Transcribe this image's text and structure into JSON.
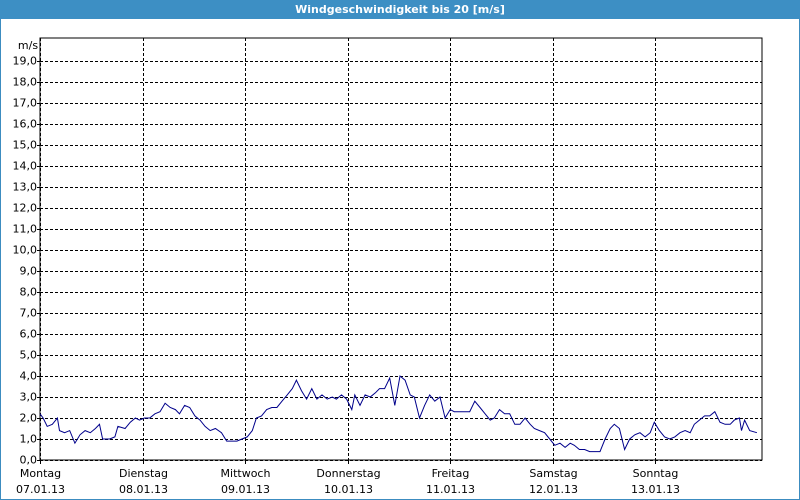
{
  "chart_data": {
    "type": "line",
    "title": "Windgeschwindigkeit bis 20 [m/s]",
    "y_label": "m/s",
    "xlim": [
      0,
      7.04
    ],
    "ylim": [
      0,
      20
    ],
    "xticks": [
      {
        "value": 0,
        "label": "Montag",
        "date": "07.01.13"
      },
      {
        "value": 1,
        "label": "Dienstag",
        "date": "08.01.13"
      },
      {
        "value": 2,
        "label": "Mittwoch",
        "date": "09.01.13"
      },
      {
        "value": 3,
        "label": "Donnerstag",
        "date": "10.01.13"
      },
      {
        "value": 4,
        "label": "Freitag",
        "date": "11.01.13"
      },
      {
        "value": 5,
        "label": "Samstag",
        "date": "12.01.13"
      },
      {
        "value": 6,
        "label": "Sonntag",
        "date": "13.01.13"
      }
    ],
    "yticks": [
      {
        "value": 0,
        "label": "0,0"
      },
      {
        "value": 1,
        "label": "1,0"
      },
      {
        "value": 2,
        "label": "2,0"
      },
      {
        "value": 3,
        "label": "3,0"
      },
      {
        "value": 4,
        "label": "4,0"
      },
      {
        "value": 5,
        "label": "5,0"
      },
      {
        "value": 6,
        "label": "6,0"
      },
      {
        "value": 7,
        "label": "7,0"
      },
      {
        "value": 8,
        "label": "8,0"
      },
      {
        "value": 9,
        "label": "9,0"
      },
      {
        "value": 10,
        "label": "10,0"
      },
      {
        "value": 11,
        "label": "11,0"
      },
      {
        "value": 12,
        "label": "12,0"
      },
      {
        "value": 13,
        "label": "13,0"
      },
      {
        "value": 14,
        "label": "14,0"
      },
      {
        "value": 15,
        "label": "15,0"
      },
      {
        "value": 16,
        "label": "16,0"
      },
      {
        "value": 17,
        "label": "17,0"
      },
      {
        "value": 18,
        "label": "18,0"
      },
      {
        "value": 19,
        "label": "19,0"
      }
    ],
    "grid": true,
    "series": [
      {
        "color": "#00008b",
        "x": [
          0,
          0.03,
          0.07,
          0.12,
          0.17,
          0.19,
          0.24,
          0.29,
          0.34,
          0.39,
          0.44,
          0.49,
          0.54,
          0.58,
          0.61,
          0.68,
          0.73,
          0.76,
          0.83,
          0.88,
          0.93,
          0.97,
          1.02,
          1.07,
          1.12,
          1.17,
          1.22,
          1.27,
          1.32,
          1.36,
          1.41,
          1.46,
          1.51,
          1.56,
          1.61,
          1.66,
          1.71,
          1.77,
          1.82,
          1.87,
          1.92,
          1.97,
          2.02,
          2.07,
          2.11,
          2.16,
          2.21,
          2.26,
          2.31,
          2.36,
          2.41,
          2.46,
          2.5,
          2.55,
          2.6,
          2.65,
          2.7,
          2.75,
          2.8,
          2.85,
          2.89,
          2.94,
          2.99,
          3.04,
          3.07,
          3.12,
          3.17,
          3.22,
          3.27,
          3.31,
          3.36,
          3.41,
          3.46,
          3.51,
          3.56,
          3.61,
          3.65,
          3.7,
          3.75,
          3.8,
          3.85,
          3.9,
          3.95,
          4.0,
          4.04,
          4.09,
          4.14,
          4.19,
          4.24,
          4.29,
          4.34,
          4.39,
          4.43,
          4.48,
          4.53,
          4.58,
          4.63,
          4.68,
          4.73,
          4.78,
          4.82,
          4.87,
          4.92,
          4.97,
          5.02,
          5.07,
          5.12,
          5.17,
          5.21,
          5.26,
          5.31,
          5.36,
          5.41,
          5.46,
          5.51,
          5.56,
          5.6,
          5.65,
          5.7,
          5.75,
          5.8,
          5.85,
          5.9,
          5.95,
          5.99,
          6.04,
          6.09,
          6.14,
          6.19,
          6.24,
          6.29,
          6.34,
          6.38,
          6.43,
          6.48,
          6.53,
          6.58,
          6.63,
          6.68,
          6.73,
          6.77,
          6.82,
          6.84,
          6.87,
          6.92,
          6.99
        ],
        "values": [
          2.2,
          2.0,
          1.6,
          1.7,
          2.0,
          1.4,
          1.3,
          1.4,
          0.8,
          1.2,
          1.4,
          1.3,
          1.5,
          1.7,
          1.0,
          1.0,
          1.1,
          1.6,
          1.5,
          1.8,
          2.0,
          1.9,
          2.0,
          2.0,
          2.2,
          2.3,
          2.7,
          2.5,
          2.4,
          2.2,
          2.6,
          2.5,
          2.1,
          1.9,
          1.6,
          1.4,
          1.5,
          1.3,
          0.9,
          0.9,
          0.9,
          1.0,
          1.1,
          1.4,
          2.0,
          2.1,
          2.4,
          2.5,
          2.5,
          2.8,
          3.1,
          3.4,
          3.8,
          3.3,
          2.9,
          3.4,
          2.9,
          3.1,
          2.9,
          3.0,
          2.9,
          3.1,
          2.9,
          2.4,
          3.1,
          2.6,
          3.1,
          3.0,
          3.2,
          3.4,
          3.4,
          3.9,
          2.6,
          4.0,
          3.8,
          3.1,
          3.0,
          2.0,
          2.6,
          3.1,
          2.8,
          3.0,
          2.0,
          2.4,
          2.3,
          2.3,
          2.3,
          2.3,
          2.8,
          2.5,
          2.2,
          1.9,
          2.0,
          2.4,
          2.2,
          2.2,
          1.7,
          1.7,
          2.0,
          1.7,
          1.5,
          1.4,
          1.3,
          1.0,
          0.7,
          0.8,
          0.6,
          0.8,
          0.7,
          0.5,
          0.5,
          0.4,
          0.4,
          0.4,
          1.0,
          1.5,
          1.7,
          1.5,
          0.5,
          1.0,
          1.2,
          1.3,
          1.1,
          1.3,
          1.8,
          1.4,
          1.1,
          1.0,
          1.1,
          1.3,
          1.4,
          1.3,
          1.7,
          1.9,
          2.1,
          2.1,
          2.3,
          1.8,
          1.7,
          1.7,
          1.9,
          2.0,
          1.4,
          1.9,
          1.4,
          1.3
        ]
      }
    ]
  }
}
